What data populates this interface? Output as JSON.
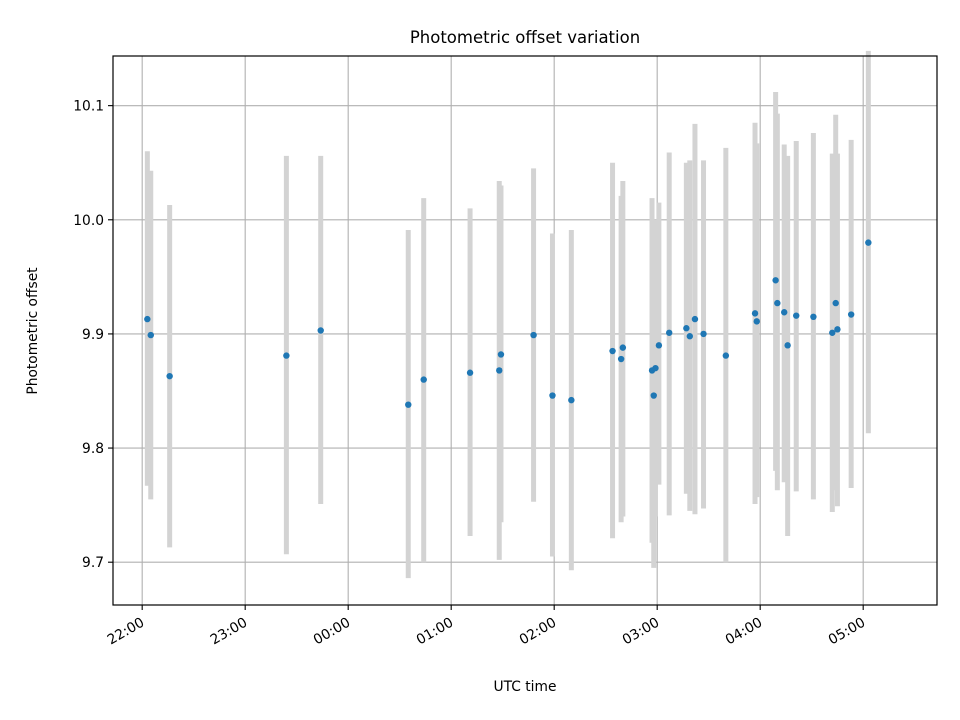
{
  "chart_data": {
    "type": "scatter",
    "title": "Photometric offset variation",
    "xlabel": "UTC time",
    "ylabel": "Photometric offset",
    "xlim": [
      "21:43",
      "05:43"
    ],
    "ylim": [
      9.6625,
      10.1435
    ],
    "grid": true,
    "x_ticks": [
      "22:00",
      "23:00",
      "00:00",
      "01:00",
      "02:00",
      "03:00",
      "04:00",
      "05:00"
    ],
    "y_ticks": [
      "9.7",
      "9.8",
      "9.9",
      "10.0",
      "10.1"
    ],
    "colors": {
      "points": "#1f77b4",
      "errorbars": "#d3d3d3",
      "grid": "#b0b0b0"
    },
    "series": [
      {
        "error_type": "vertical bars",
        "points": [
          {
            "x": "22:03",
            "y": 9.913,
            "ylo": 9.767,
            "yhi": 10.06
          },
          {
            "x": "22:05",
            "y": 9.899,
            "ylo": 9.755,
            "yhi": 10.043
          },
          {
            "x": "22:16",
            "y": 9.863,
            "ylo": 9.713,
            "yhi": 10.013
          },
          {
            "x": "23:24",
            "y": 9.881,
            "ylo": 9.707,
            "yhi": 10.056
          },
          {
            "x": "23:44",
            "y": 9.903,
            "ylo": 9.751,
            "yhi": 10.056
          },
          {
            "x": "00:35",
            "y": 9.838,
            "ylo": 9.686,
            "yhi": 9.991
          },
          {
            "x": "00:44",
            "y": 9.86,
            "ylo": 9.7,
            "yhi": 10.019
          },
          {
            "x": "01:11",
            "y": 9.866,
            "ylo": 9.723,
            "yhi": 10.01
          },
          {
            "x": "01:28",
            "y": 9.868,
            "ylo": 9.702,
            "yhi": 10.034
          },
          {
            "x": "01:29",
            "y": 9.882,
            "ylo": 9.735,
            "yhi": 10.03
          },
          {
            "x": "01:48",
            "y": 9.899,
            "ylo": 9.753,
            "yhi": 10.045
          },
          {
            "x": "01:59",
            "y": 9.846,
            "ylo": 9.705,
            "yhi": 9.988
          },
          {
            "x": "02:10",
            "y": 9.842,
            "ylo": 9.693,
            "yhi": 9.991
          },
          {
            "x": "02:34",
            "y": 9.885,
            "ylo": 9.721,
            "yhi": 10.05
          },
          {
            "x": "02:39",
            "y": 9.878,
            "ylo": 9.735,
            "yhi": 10.021
          },
          {
            "x": "02:40",
            "y": 9.888,
            "ylo": 9.74,
            "yhi": 10.034
          },
          {
            "x": "02:57",
            "y": 9.868,
            "ylo": 9.717,
            "yhi": 10.019
          },
          {
            "x": "02:58",
            "y": 9.846,
            "ylo": 9.695,
            "yhi": 9.998
          },
          {
            "x": "02:59",
            "y": 9.87,
            "ylo": 9.74,
            "yhi": 10.0
          },
          {
            "x": "03:01",
            "y": 9.89,
            "ylo": 9.768,
            "yhi": 10.015
          },
          {
            "x": "03:07",
            "y": 9.901,
            "ylo": 9.741,
            "yhi": 10.059
          },
          {
            "x": "03:17",
            "y": 9.905,
            "ylo": 9.76,
            "yhi": 10.05
          },
          {
            "x": "03:19",
            "y": 9.898,
            "ylo": 9.745,
            "yhi": 10.052
          },
          {
            "x": "03:22",
            "y": 9.913,
            "ylo": 9.742,
            "yhi": 10.084
          },
          {
            "x": "03:27",
            "y": 9.9,
            "ylo": 9.747,
            "yhi": 10.052
          },
          {
            "x": "03:40",
            "y": 9.881,
            "ylo": 9.7,
            "yhi": 10.063
          },
          {
            "x": "03:57",
            "y": 9.918,
            "ylo": 9.751,
            "yhi": 10.085
          },
          {
            "x": "03:58",
            "y": 9.911,
            "ylo": 9.757,
            "yhi": 10.067
          },
          {
            "x": "04:09",
            "y": 9.947,
            "ylo": 9.78,
            "yhi": 10.112
          },
          {
            "x": "04:10",
            "y": 9.927,
            "ylo": 9.763,
            "yhi": 10.093
          },
          {
            "x": "04:14",
            "y": 9.919,
            "ylo": 9.77,
            "yhi": 10.066
          },
          {
            "x": "04:16",
            "y": 9.89,
            "ylo": 9.723,
            "yhi": 10.056
          },
          {
            "x": "04:21",
            "y": 9.916,
            "ylo": 9.762,
            "yhi": 10.069
          },
          {
            "x": "04:31",
            "y": 9.915,
            "ylo": 9.755,
            "yhi": 10.076
          },
          {
            "x": "04:42",
            "y": 9.901,
            "ylo": 9.744,
            "yhi": 10.058
          },
          {
            "x": "04:44",
            "y": 9.927,
            "ylo": 9.763,
            "yhi": 10.092
          },
          {
            "x": "04:45",
            "y": 9.904,
            "ylo": 9.749,
            "yhi": 10.058
          },
          {
            "x": "04:53",
            "y": 9.917,
            "ylo": 9.765,
            "yhi": 10.07
          },
          {
            "x": "05:03",
            "y": 9.98,
            "ylo": 9.813,
            "yhi": 10.148
          }
        ]
      }
    ]
  }
}
